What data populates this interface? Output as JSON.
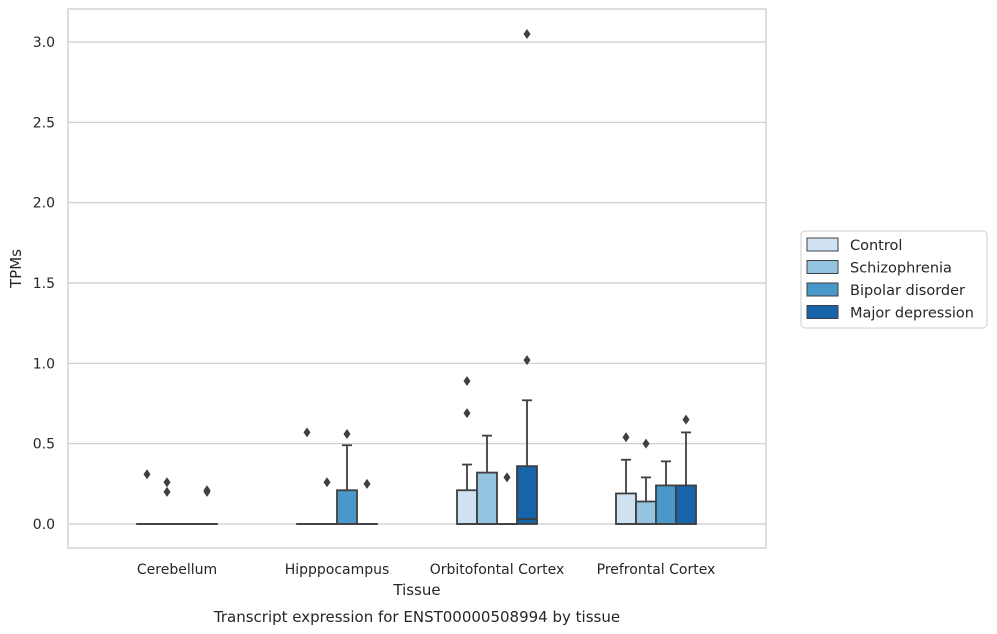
{
  "chart_data": {
    "type": "box",
    "xlabel": "Tissue",
    "ylabel": "TPMs",
    "caption": "Transcript expression for ENST00000508994 by tissue",
    "ylim": [
      -0.15,
      3.2
    ],
    "yticks": [
      0.0,
      0.5,
      1.0,
      1.5,
      2.0,
      2.5,
      3.0
    ],
    "ytick_labels": [
      "0.0",
      "0.5",
      "1.0",
      "1.5",
      "2.0",
      "2.5",
      "3.0"
    ],
    "grid": "horizontal",
    "legend_position": "right",
    "categories": [
      "Cerebellum",
      "Hipppocampus",
      "Orbitofontal Cortex",
      "Prefrontal Cortex"
    ],
    "series": [
      {
        "name": "Control",
        "color": "#d0e1f2",
        "boxes": [
          {
            "q1": 0,
            "median": 0,
            "q3": 0,
            "whisker_low": 0,
            "whisker_high": 0,
            "outliers": [
              0.31
            ]
          },
          {
            "q1": 0,
            "median": 0,
            "q3": 0,
            "whisker_low": 0,
            "whisker_high": 0,
            "outliers": [
              0.57
            ]
          },
          {
            "q1": 0,
            "median": 0,
            "q3": 0.21,
            "whisker_low": 0,
            "whisker_high": 0.37,
            "outliers": [
              0.69,
              0.89
            ]
          },
          {
            "q1": 0,
            "median": 0,
            "q3": 0.19,
            "whisker_low": 0,
            "whisker_high": 0.4,
            "outliers": [
              0.54
            ]
          }
        ]
      },
      {
        "name": "Schizophrenia",
        "color": "#94c4df",
        "boxes": [
          {
            "q1": 0,
            "median": 0,
            "q3": 0,
            "whisker_low": 0,
            "whisker_high": 0,
            "outliers": [
              0.2,
              0.26
            ]
          },
          {
            "q1": 0,
            "median": 0,
            "q3": 0,
            "whisker_low": 0,
            "whisker_high": 0,
            "outliers": [
              0.26
            ]
          },
          {
            "q1": 0,
            "median": 0,
            "q3": 0.32,
            "whisker_low": 0,
            "whisker_high": 0.55,
            "outliers": []
          },
          {
            "q1": 0,
            "median": 0,
            "q3": 0.14,
            "whisker_low": 0,
            "whisker_high": 0.29,
            "outliers": [
              0.5
            ]
          }
        ]
      },
      {
        "name": "Bipolar disorder",
        "color": "#4a98c9",
        "boxes": [
          {
            "q1": 0,
            "median": 0,
            "q3": 0,
            "whisker_low": 0,
            "whisker_high": 0,
            "outliers": []
          },
          {
            "q1": 0,
            "median": 0,
            "q3": 0.21,
            "whisker_low": 0,
            "whisker_high": 0.49,
            "outliers": [
              0.56
            ]
          },
          {
            "q1": 0,
            "median": 0,
            "q3": 0,
            "whisker_low": 0,
            "whisker_high": 0,
            "outliers": [
              0.29
            ]
          },
          {
            "q1": 0,
            "median": 0,
            "q3": 0.24,
            "whisker_low": 0,
            "whisker_high": 0.39,
            "outliers": []
          }
        ]
      },
      {
        "name": "Major depression",
        "color": "#1764ab",
        "boxes": [
          {
            "q1": 0,
            "median": 0,
            "q3": 0,
            "whisker_low": 0,
            "whisker_high": 0,
            "outliers": [
              0.2,
              0.21
            ]
          },
          {
            "q1": 0,
            "median": 0,
            "q3": 0,
            "whisker_low": 0,
            "whisker_high": 0,
            "outliers": [
              0.25
            ]
          },
          {
            "q1": 0,
            "median": 0.03,
            "q3": 0.36,
            "whisker_low": 0,
            "whisker_high": 0.77,
            "outliers": [
              1.02,
              3.05
            ]
          },
          {
            "q1": 0,
            "median": 0,
            "q3": 0.24,
            "whisker_low": 0,
            "whisker_high": 0.57,
            "outliers": [
              0.65
            ]
          }
        ]
      }
    ]
  }
}
